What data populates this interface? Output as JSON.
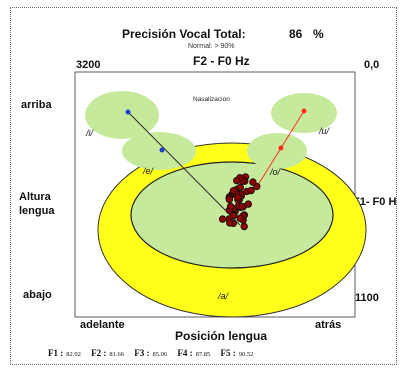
{
  "header": {
    "title": "Precisión Vocal Total:",
    "score_value": "86",
    "score_unit": "%",
    "subtitle": "Normal: > 90%"
  },
  "axes": {
    "top_label": "F2 - F0  Hz",
    "f2_max": "3200",
    "f2_min": "0,0",
    "left_top": "arriba",
    "left_mid": "Altura lengua",
    "left_bottom": "abajo",
    "right_mid": "F1- F0 H",
    "right_bottom": "1100",
    "bottom_left": "adelante",
    "bottom_right": "atrás",
    "bottom_label": "Posición lengua"
  },
  "regions": {
    "nasalization_label": "Nasalizacion",
    "vowel_i": "/i/",
    "vowel_e": "/e/",
    "vowel_u": "/u/",
    "vowel_o": "/o/",
    "vowel_a": "/a/"
  },
  "formants": [
    {
      "label": "F1 :",
      "value": "82.92"
    },
    {
      "label": "F2 :",
      "value": "81.66"
    },
    {
      "label": "F3 :",
      "value": "85.06"
    },
    {
      "label": "F4 :",
      "value": "87.85"
    },
    {
      "label": "F5 :",
      "value": "90.52"
    }
  ],
  "colors": {
    "ellipse_fill": "#c6ea9c",
    "outer_a_fill": "#ffff1a",
    "point_fill": "#8b0000",
    "line_i": "#2b2b2b",
    "line_u": "#ff3322",
    "point_i": "#1f3fd6",
    "point_u": "#ff2a1a"
  }
}
